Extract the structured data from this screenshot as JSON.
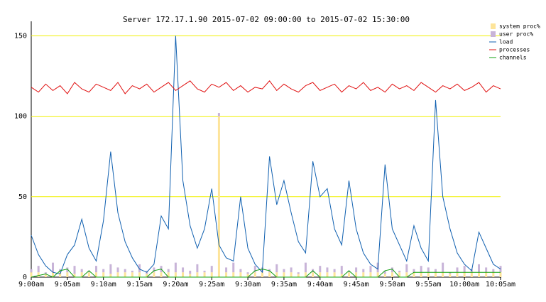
{
  "chart_data": {
    "type": "line",
    "title": "Server 172.17.1.90   2015-07-02 09:00:00 to 2015-07-02 15:30:00",
    "x": [
      0,
      1,
      2,
      3,
      4,
      5,
      6,
      7,
      8,
      9,
      10,
      11,
      12,
      13,
      14,
      15,
      16,
      17,
      18,
      19,
      20,
      21,
      22,
      23,
      24,
      25,
      26,
      27,
      28,
      29,
      30,
      31,
      32,
      33,
      34,
      35,
      36,
      37,
      38,
      39,
      40,
      41,
      42,
      43,
      44,
      45,
      46,
      47,
      48,
      49,
      50,
      51,
      52,
      53,
      54,
      55,
      56,
      57,
      58,
      59,
      60,
      61,
      62,
      63,
      64,
      65
    ],
    "xlim": [
      0,
      65
    ],
    "xticks": [
      {
        "value": 0,
        "label": "9:00am"
      },
      {
        "value": 5,
        "label": "9:05am"
      },
      {
        "value": 10,
        "label": "9:10am"
      },
      {
        "value": 15,
        "label": "9:15am"
      },
      {
        "value": 20,
        "label": "9:20am"
      },
      {
        "value": 25,
        "label": "9:25am"
      },
      {
        "value": 30,
        "label": "9:30am"
      },
      {
        "value": 35,
        "label": "9:35am"
      },
      {
        "value": 40,
        "label": "9:40am"
      },
      {
        "value": 45,
        "label": "9:45am"
      },
      {
        "value": 50,
        "label": "9:50am"
      },
      {
        "value": 55,
        "label": "9:55am"
      },
      {
        "value": 60,
        "label": "10:00am"
      },
      {
        "value": 65,
        "label": "10:05am"
      }
    ],
    "ylim": [
      0,
      159
    ],
    "yticks": [
      0,
      50,
      100,
      150
    ],
    "grid": true,
    "grid_color": "#f0f000",
    "bar_series": [
      {
        "name": "system proc%",
        "color": "#fde49a",
        "values": [
          3,
          3,
          2,
          3,
          3,
          3,
          2,
          3,
          3,
          3,
          3,
          2,
          3,
          3,
          3,
          3,
          2,
          3,
          3,
          3,
          3,
          3,
          2,
          3,
          3,
          3,
          100,
          3,
          3,
          3,
          2,
          3,
          3,
          3,
          3,
          3,
          3,
          2,
          3,
          3,
          3,
          3,
          3,
          2,
          3,
          3,
          3,
          3,
          3,
          2,
          3,
          3,
          3,
          3,
          3,
          3,
          3,
          3,
          2,
          3,
          3,
          3,
          3,
          3,
          3,
          3
        ]
      },
      {
        "name": "user proc%",
        "color": "#c8b4d8",
        "values": [
          2,
          4,
          1,
          6,
          2,
          3,
          5,
          2,
          1,
          4,
          2,
          6,
          3,
          2,
          1,
          5,
          2,
          3,
          4,
          2,
          6,
          3,
          2,
          5,
          1,
          4,
          2,
          3,
          6,
          2,
          1,
          4,
          3,
          2,
          5,
          2,
          3,
          1,
          6,
          2,
          4,
          3,
          2,
          5,
          1,
          3,
          2,
          4,
          6,
          2,
          3,
          1,
          5,
          2,
          4,
          3,
          2,
          6,
          1,
          3,
          4,
          2,
          5,
          3,
          2,
          4
        ]
      }
    ],
    "series": [
      {
        "name": "load",
        "color": "#1060b0",
        "values": [
          26,
          14,
          7,
          3,
          2,
          14,
          20,
          36,
          18,
          10,
          35,
          78,
          40,
          22,
          12,
          5,
          3,
          8,
          38,
          30,
          150,
          60,
          32,
          18,
          30,
          55,
          20,
          12,
          10,
          50,
          18,
          8,
          3,
          75,
          45,
          60,
          40,
          22,
          15,
          72,
          50,
          55,
          30,
          20,
          60,
          30,
          15,
          8,
          5,
          70,
          30,
          20,
          10,
          32,
          18,
          10,
          110,
          50,
          30,
          15,
          8,
          4,
          28,
          18,
          8,
          5
        ]
      },
      {
        "name": "processes",
        "color": "#e01010",
        "values": [
          118,
          115,
          120,
          116,
          119,
          114,
          121,
          117,
          115,
          120,
          118,
          116,
          121,
          114,
          119,
          117,
          120,
          115,
          118,
          121,
          116,
          119,
          122,
          117,
          115,
          120,
          118,
          121,
          116,
          119,
          115,
          118,
          117,
          122,
          116,
          120,
          117,
          115,
          119,
          121,
          116,
          118,
          120,
          115,
          119,
          117,
          121,
          116,
          118,
          115,
          120,
          117,
          119,
          116,
          121,
          118,
          115,
          119,
          117,
          120,
          116,
          118,
          121,
          115,
          119,
          117
        ]
      },
      {
        "name": "channels",
        "color": "#10a010",
        "values": [
          0,
          1,
          2,
          0,
          4,
          5,
          0,
          0,
          4,
          0,
          0,
          0,
          0,
          0,
          0,
          0,
          0,
          4,
          5,
          0,
          0,
          0,
          0,
          0,
          0,
          0,
          0,
          0,
          0,
          0,
          0,
          4,
          5,
          4,
          0,
          0,
          0,
          0,
          0,
          4,
          0,
          0,
          0,
          0,
          4,
          0,
          0,
          0,
          0,
          4,
          5,
          0,
          0,
          3,
          3,
          3,
          3,
          3,
          3,
          3,
          3,
          3,
          3,
          3,
          3,
          3
        ]
      }
    ]
  }
}
